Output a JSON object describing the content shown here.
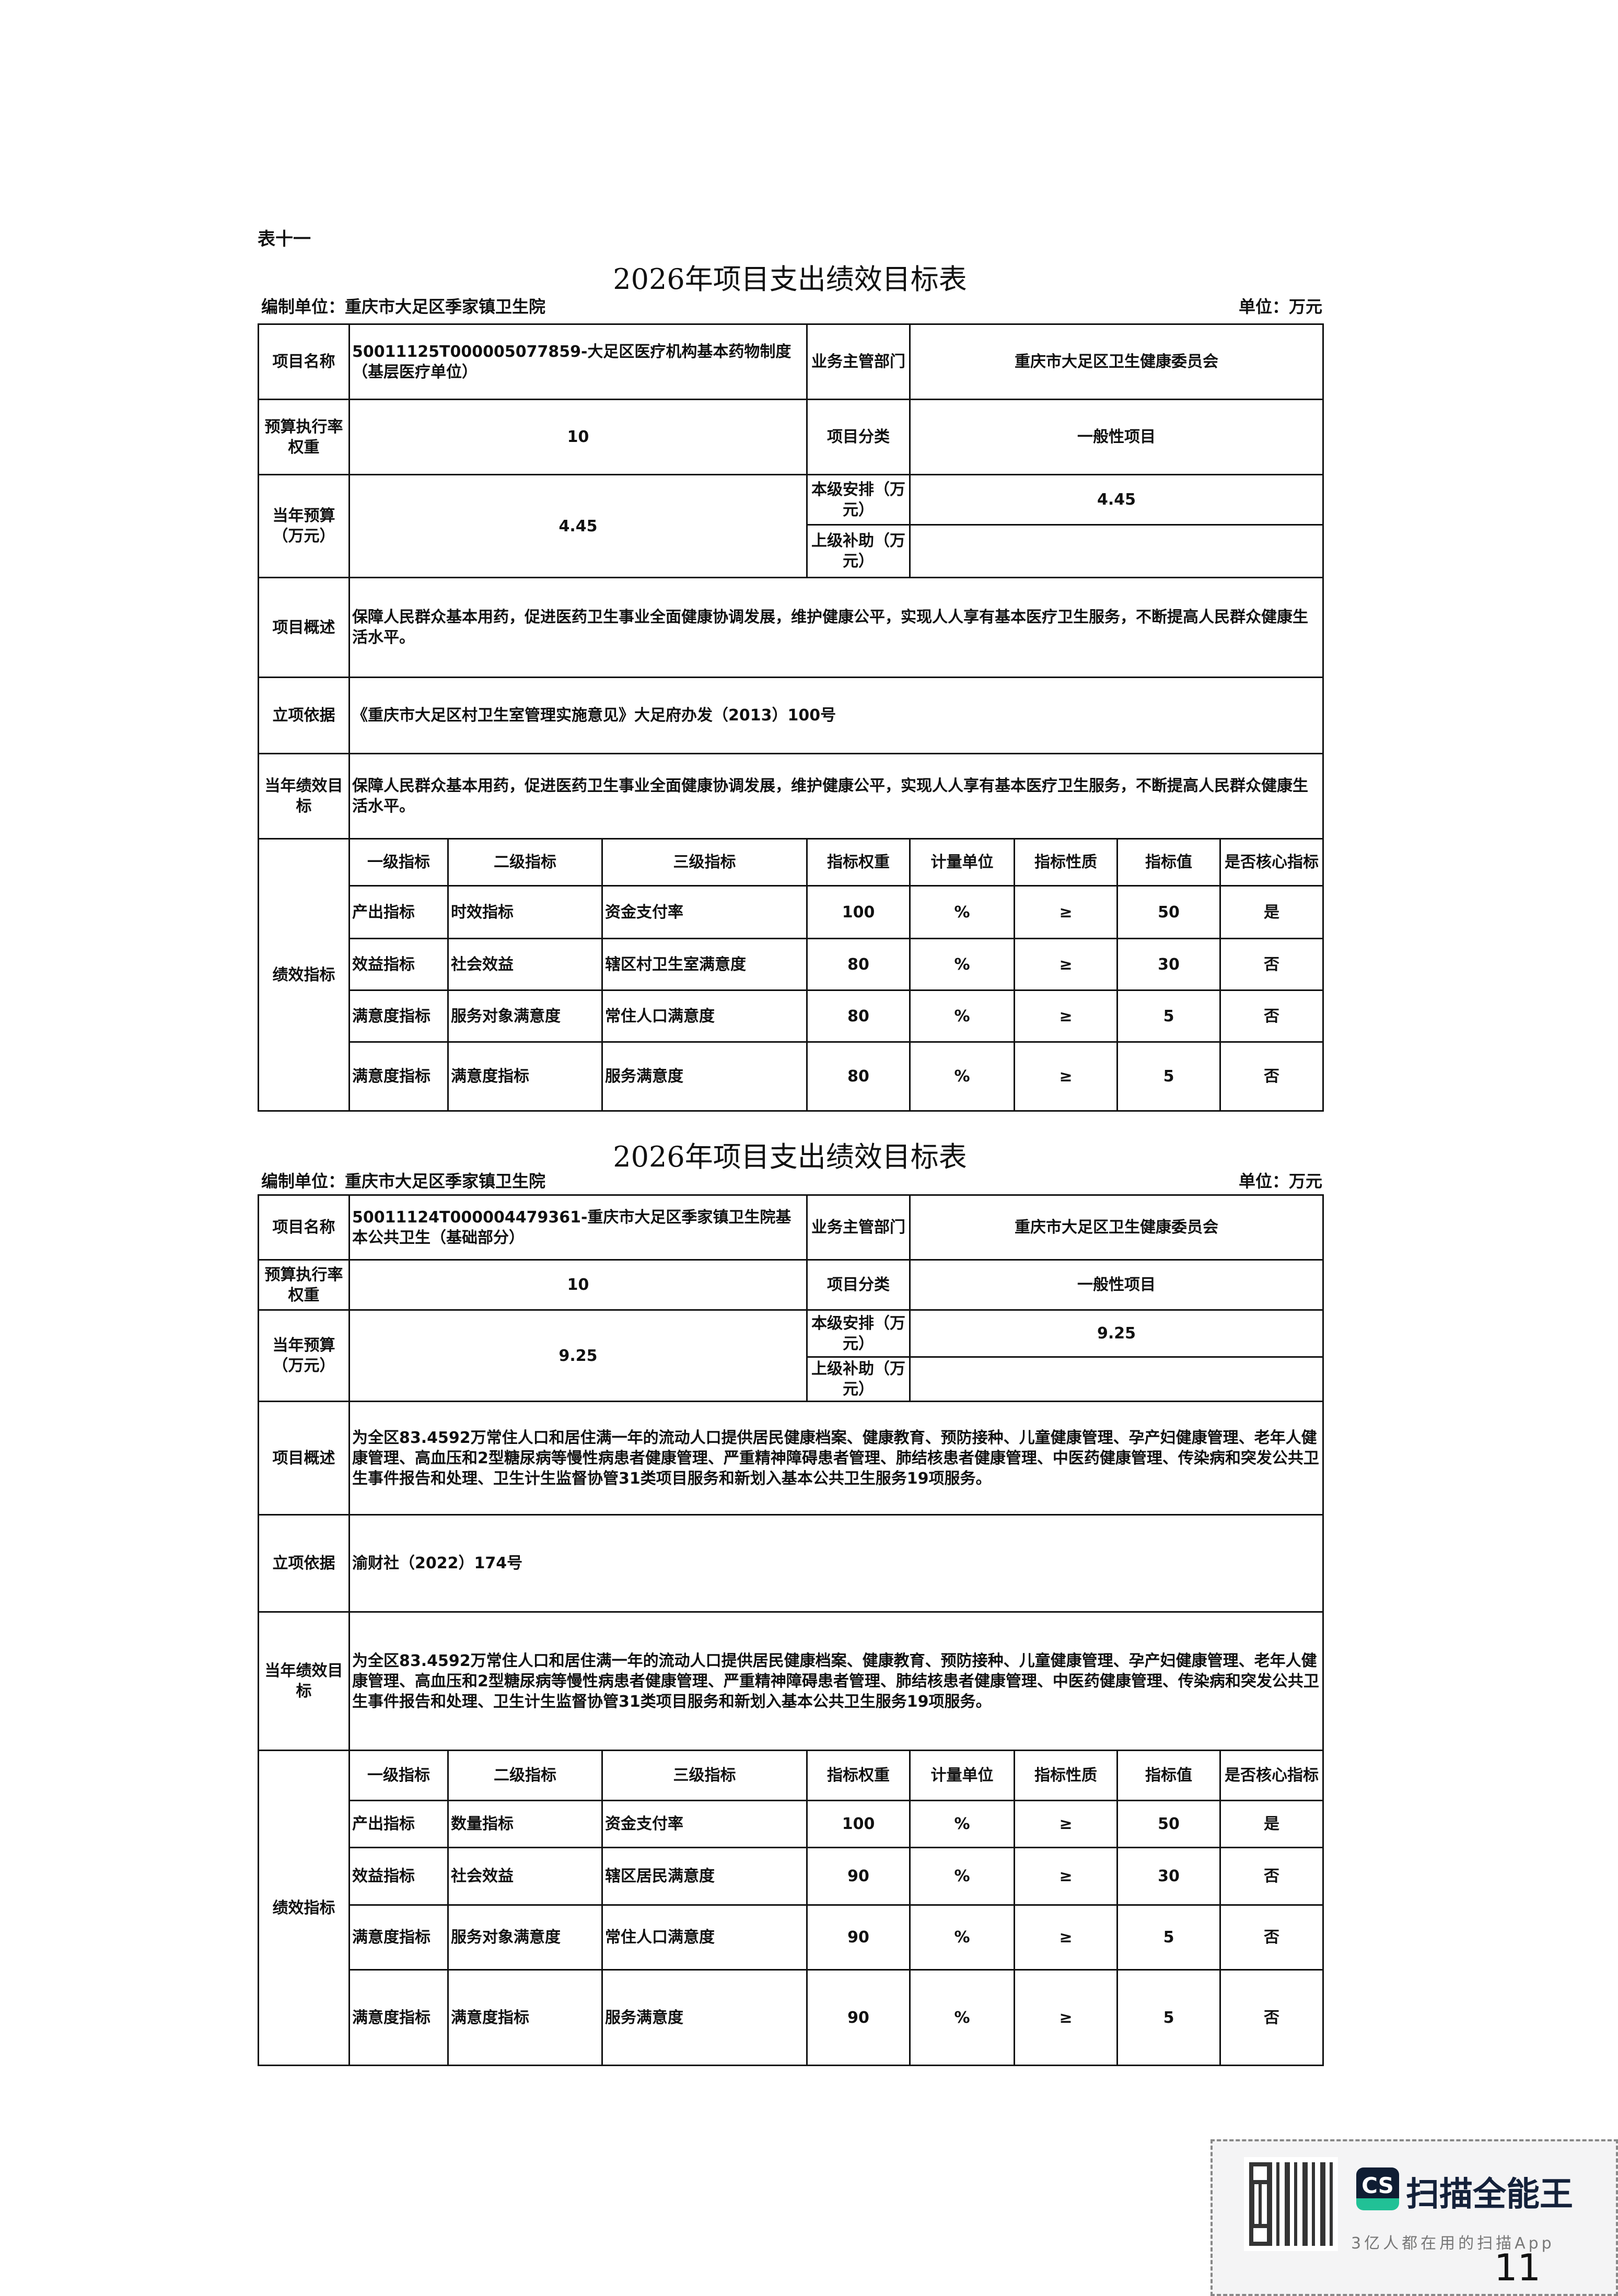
{
  "table_no": "表十一",
  "tables": [
    {
      "title": "2026年项目支出绩效目标表",
      "unit_label": "编制单位：重庆市大足区季家镇卫生院",
      "money_unit": "单位：万元",
      "project_name_label": "项目名称",
      "project_name": "50011125T000005077859-大足区医疗机构基本药物制度（基层医疗单位）",
      "dept_label": "业务主管部门",
      "dept": "重庆市大足区卫生健康委员会",
      "rate_weight_label": "预算执行率权重",
      "rate_weight": "10",
      "category_label": "项目分类",
      "category": "一般性项目",
      "budget_label": "当年预算（万元）",
      "budget": "4.45",
      "local_label": "本级安排（万元）",
      "local": "4.45",
      "upper_label": "上级补助（万元）",
      "upper": "",
      "overview_label": "项目概述",
      "overview": "保障人民群众基本用药，促进医药卫生事业全面健康协调发展，维护健康公平，实现人人享有基本医疗卫生服务，不断提高人民群众健康生活水平。",
      "basis_label": "立项依据",
      "basis": "《重庆市大足区村卫生室管理实施意见》大足府办发（2013）100号",
      "goal_label": "当年绩效目标",
      "goal": "保障人民群众基本用药，促进医药卫生事业全面健康协调发展，维护健康公平，实现人人享有基本医疗卫生服务，不断提高人民群众健康生活水平。",
      "perf_label": "绩效指标",
      "perf_headers": [
        "一级指标",
        "二级指标",
        "三级指标",
        "指标权重",
        "计量单位",
        "指标性质",
        "指标值",
        "是否核心指标"
      ],
      "perf_rows": [
        [
          "产出指标",
          "时效指标",
          "资金支付率",
          "100",
          "%",
          "≥",
          "50",
          "是"
        ],
        [
          "效益指标",
          "社会效益",
          "辖区村卫生室满意度",
          "80",
          "%",
          "≥",
          "30",
          "否"
        ],
        [
          "满意度指标",
          "服务对象满意度",
          "常住人口满意度",
          "80",
          "%",
          "≥",
          "5",
          "否"
        ],
        [
          "满意度指标",
          "满意度指标",
          "服务满意度",
          "80",
          "%",
          "≥",
          "5",
          "否"
        ]
      ]
    },
    {
      "title": "2026年项目支出绩效目标表",
      "unit_label": "编制单位：重庆市大足区季家镇卫生院",
      "money_unit": "单位：万元",
      "project_name_label": "项目名称",
      "project_name": "50011124T000004479361-重庆市大足区季家镇卫生院基本公共卫生（基础部分）",
      "dept_label": "业务主管部门",
      "dept": "重庆市大足区卫生健康委员会",
      "rate_weight_label": "预算执行率权重",
      "rate_weight": "10",
      "category_label": "项目分类",
      "category": "一般性项目",
      "budget_label": "当年预算（万元）",
      "budget": "9.25",
      "local_label": "本级安排（万元）",
      "local": "9.25",
      "upper_label": "上级补助（万元）",
      "upper": "",
      "overview_label": "项目概述",
      "overview": "为全区83.4592万常住人口和居住满一年的流动人口提供居民健康档案、健康教育、预防接种、儿童健康管理、孕产妇健康管理、老年人健康管理、高血压和2型糖尿病等慢性病患者健康管理、严重精神障碍患者管理、肺结核患者健康管理、中医药健康管理、传染病和突发公共卫生事件报告和处理、卫生计生监督协管31类项目服务和新划入基本公共卫生服务19项服务。",
      "basis_label": "立项依据",
      "basis": "渝财社（2022）174号",
      "goal_label": "当年绩效目标",
      "goal": "为全区83.4592万常住人口和居住满一年的流动人口提供居民健康档案、健康教育、预防接种、儿童健康管理、孕产妇健康管理、老年人健康管理、高血压和2型糖尿病等慢性病患者健康管理、严重精神障碍患者管理、肺结核患者健康管理、中医药健康管理、传染病和突发公共卫生事件报告和处理、卫生计生监督协管31类项目服务和新划入基本公共卫生服务19项服务。",
      "perf_label": "绩效指标",
      "perf_headers": [
        "一级指标",
        "二级指标",
        "三级指标",
        "指标权重",
        "计量单位",
        "指标性质",
        "指标值",
        "是否核心指标"
      ],
      "perf_rows": [
        [
          "产出指标",
          "数量指标",
          "资金支付率",
          "100",
          "%",
          "≥",
          "50",
          "是"
        ],
        [
          "效益指标",
          "社会效益",
          "辖区居民满意度",
          "90",
          "%",
          "≥",
          "30",
          "否"
        ],
        [
          "满意度指标",
          "服务对象满意度",
          "常住人口满意度",
          "90",
          "%",
          "≥",
          "5",
          "否"
        ],
        [
          "满意度指标",
          "满意度指标",
          "服务满意度",
          "90",
          "%",
          "≥",
          "5",
          "否"
        ]
      ]
    }
  ],
  "watermark": {
    "logo_text": "CS",
    "brand": "扫描全能王",
    "slogan": "3亿人都在用的扫描App",
    "icon": "qr-code-icon",
    "logo_colors": [
      "#0f1d33",
      "#21c196"
    ]
  },
  "page_number": "11"
}
